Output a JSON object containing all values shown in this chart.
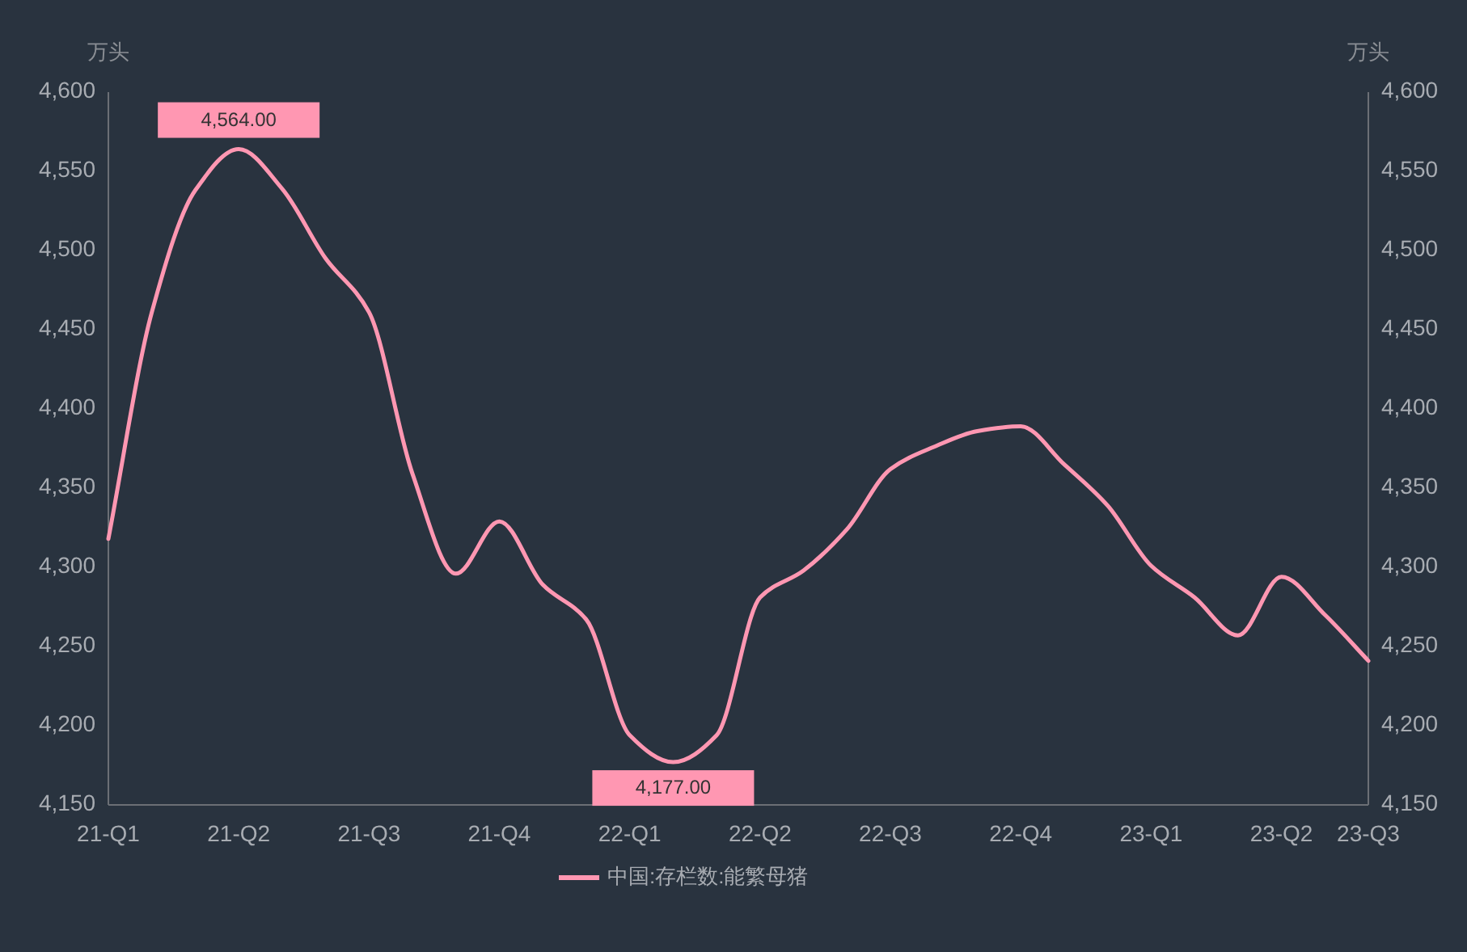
{
  "chart_data": {
    "type": "line",
    "categories": [
      "21-Q1",
      null,
      null,
      "21-Q2",
      null,
      null,
      "21-Q3",
      null,
      null,
      "21-Q4",
      null,
      null,
      "22-Q1",
      null,
      null,
      "22-Q2",
      null,
      null,
      "22-Q3",
      null,
      null,
      "22-Q4",
      null,
      null,
      "23-Q1",
      null,
      null,
      "23-Q2",
      null,
      "23-Q3"
    ],
    "series": [
      {
        "name": "中国:存栏数:能繁母猪",
        "color": "#ff97b2",
        "values": [
          4318,
          4461,
          4538,
          4564,
          4539,
          4495,
          4461,
          4359,
          4296,
          4329,
          4289,
          4267,
          4194,
          4177,
          4194,
          4281,
          4298,
          4324,
          4362,
          4376,
          4386,
          4389,
          4365,
          4339,
          4301,
          4281,
          4257,
          4294,
          4270,
          4241
        ],
        "value_labels": [
          null,
          null,
          null,
          "4,564.00",
          null,
          null,
          null,
          null,
          null,
          null,
          null,
          null,
          null,
          "4,177.00",
          null,
          null,
          null,
          null,
          null,
          null,
          null,
          null,
          null,
          null,
          null,
          null,
          null,
          null,
          null,
          null
        ]
      }
    ],
    "ylabel": "万头",
    "y2label": "万头",
    "ylim": [
      4150,
      4600
    ],
    "yticks": [
      {
        "value": 4150,
        "label": "4,150"
      },
      {
        "value": 4200,
        "label": "4,200"
      },
      {
        "value": 4250,
        "label": "4,250"
      },
      {
        "value": 4300,
        "label": "4,300"
      },
      {
        "value": 4350,
        "label": "4,350"
      },
      {
        "value": 4400,
        "label": "4,400"
      },
      {
        "value": 4450,
        "label": "4,450"
      },
      {
        "value": 4500,
        "label": "4,500"
      },
      {
        "value": 4550,
        "label": "4,550"
      },
      {
        "value": 4600,
        "label": "4,600"
      }
    ],
    "y2lim": [
      4150,
      4600
    ],
    "y2ticks": [
      {
        "value": 4150,
        "label": "4,150"
      },
      {
        "value": 4200,
        "label": "4,200"
      },
      {
        "value": 4250,
        "label": "4,250"
      },
      {
        "value": 4300,
        "label": "4,300"
      },
      {
        "value": 4350,
        "label": "4,350"
      },
      {
        "value": 4400,
        "label": "4,400"
      },
      {
        "value": 4450,
        "label": "4,450"
      },
      {
        "value": 4500,
        "label": "4,500"
      },
      {
        "value": 4550,
        "label": "4,550"
      },
      {
        "value": 4600,
        "label": "4,600"
      }
    ],
    "legend": "bottom",
    "marker": "none",
    "line_style": "solid"
  }
}
